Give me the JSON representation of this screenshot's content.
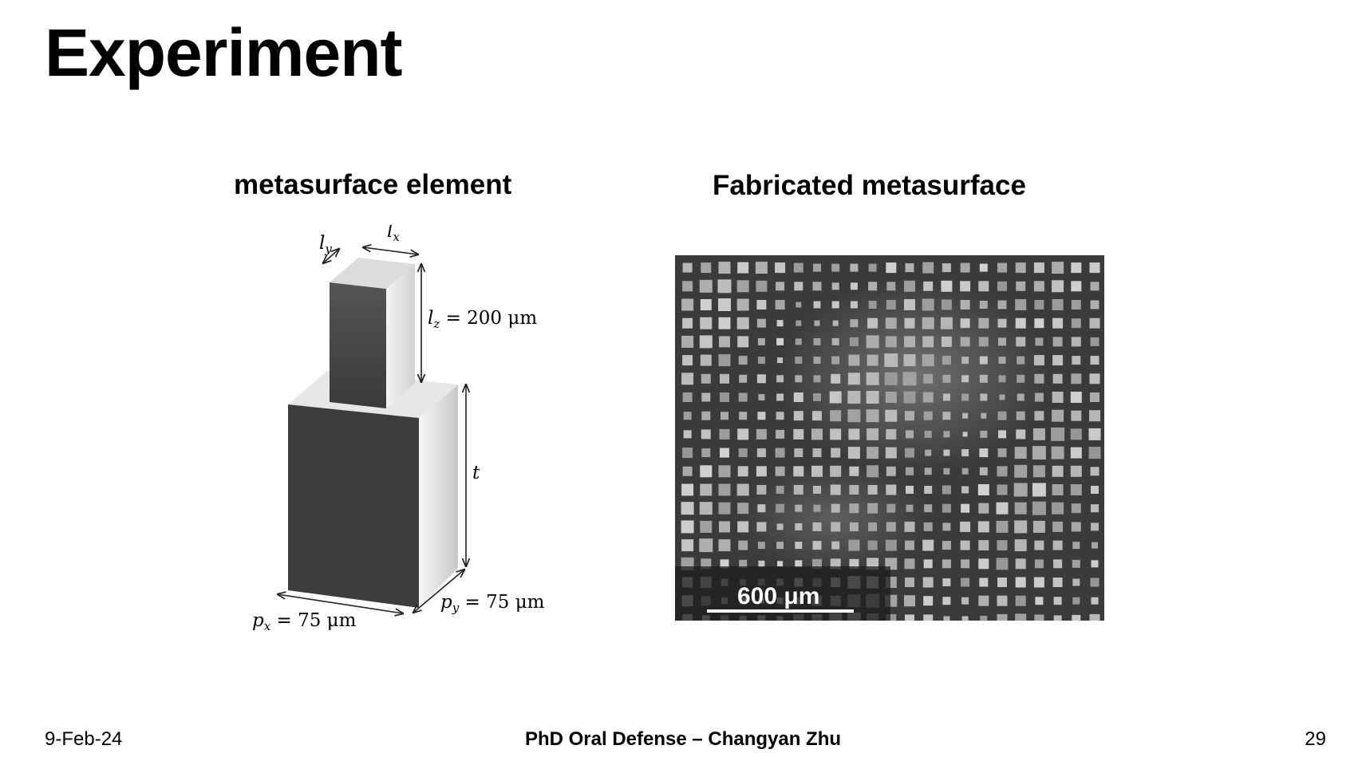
{
  "slide": {
    "title": "Experiment",
    "left_heading": "metasurface element",
    "right_heading": "Fabricated metasurface"
  },
  "element_figure": {
    "ly": "l",
    "ly_sub": "y",
    "lx": "l",
    "lx_sub": "x",
    "lz_var": "l",
    "lz_sub": "z",
    "lz_value": " = 200 μm",
    "t": "t",
    "px_var": "p",
    "px_sub": "x",
    "px_value": " = 75 μm",
    "py_var": "p",
    "py_sub": "y",
    "py_value": " = 75 μm"
  },
  "sem_figure": {
    "scale_bar_label": "600 μm"
  },
  "footer": {
    "date": "9-Feb-24",
    "presentation": "PhD Oral Defense – Changyan Zhu",
    "page": "29"
  }
}
